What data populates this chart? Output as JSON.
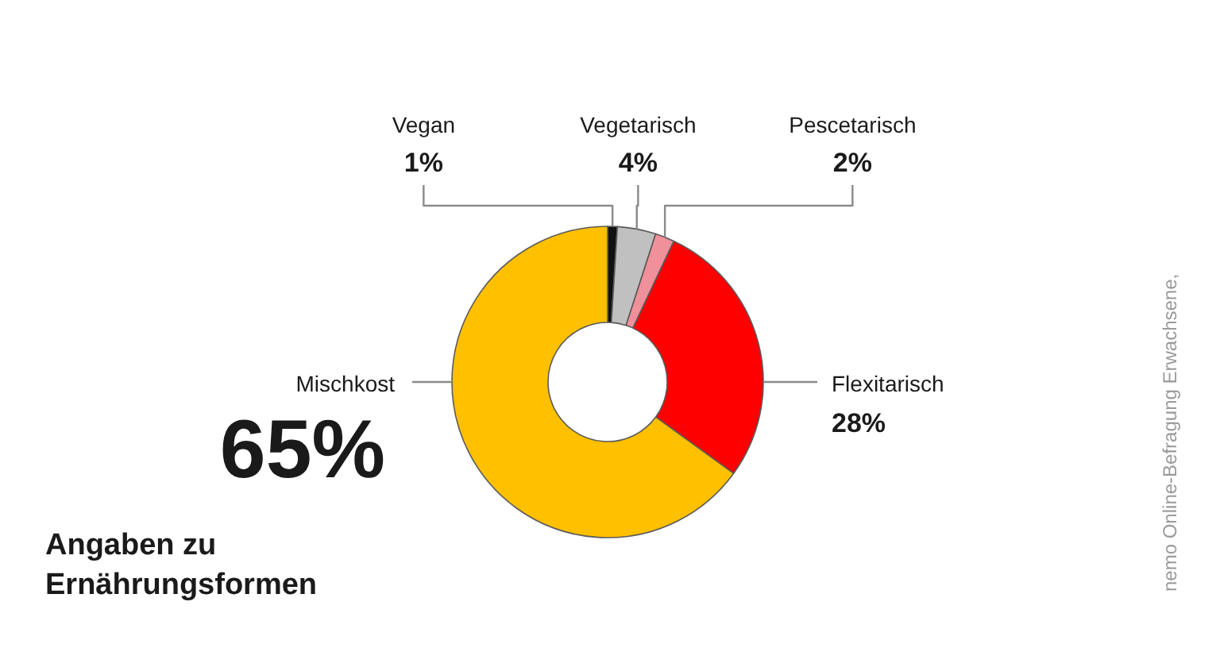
{
  "chart_data": {
    "type": "donut",
    "title": "Angaben zu Ernährungsformen",
    "categories": [
      "Vegan",
      "Vegetarisch",
      "Pescetarisch",
      "Flexitarisch",
      "Mischkost"
    ],
    "values": [
      1,
      4,
      2,
      28,
      65
    ],
    "colors": [
      "#111111",
      "#c0c0c0",
      "#f0909a",
      "#ff0000",
      "#ffc000"
    ],
    "value_labels": [
      "1%",
      "4%",
      "2%",
      "28%",
      "65%"
    ],
    "annotations": [
      "nemo Online-Befragung Erwachsene,"
    ]
  }
}
